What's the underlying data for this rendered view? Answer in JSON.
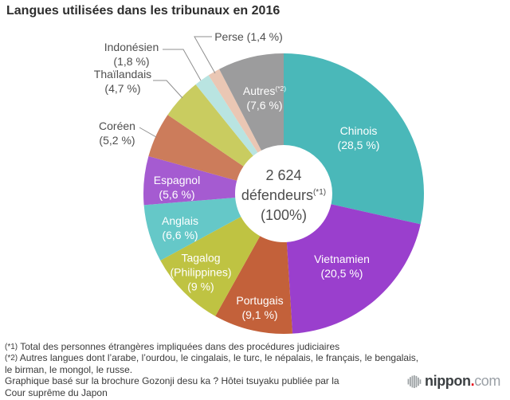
{
  "title": "Langues utilisées dans les tribunaux en 2016",
  "chart_data": {
    "type": "pie",
    "subtype": "donut",
    "title": "Langues utilisées dans les tribunaux en 2016",
    "start_angle_deg": 0,
    "direction": "clockwise",
    "center_label": {
      "total": "2 624",
      "unit": "défendeurs",
      "unit_sup": "(*1)",
      "share": "(100%)"
    },
    "slices": [
      {
        "id": "chinois",
        "name": "Chinois",
        "pct_label": "(28,5 %)",
        "value": 28.5,
        "color": "#4ab8b9"
      },
      {
        "id": "vietnamien",
        "name": "Vietnamien",
        "pct_label": "(20,5 %)",
        "value": 20.5,
        "color": "#9a3fcd"
      },
      {
        "id": "portugais",
        "name": "Portugais",
        "pct_label": "(9,1 %)",
        "value": 9.1,
        "color": "#c3613a"
      },
      {
        "id": "tagalog",
        "name": "Tagalog",
        "sub": "(Philippines)",
        "pct_label": "(9 %)",
        "value": 9.0,
        "color": "#bfc342"
      },
      {
        "id": "anglais",
        "name": "Anglais",
        "pct_label": "(6,6 %)",
        "value": 6.6,
        "color": "#65c8c8"
      },
      {
        "id": "espagnol",
        "name": "Espagnol",
        "pct_label": "(5,6 %)",
        "value": 5.6,
        "color": "#a55bd1"
      },
      {
        "id": "coreen",
        "name": "Coréen",
        "pct_label": "(5,2 %)",
        "value": 5.2,
        "color": "#cc7c5b"
      },
      {
        "id": "thailandais",
        "name": "Thaïlandais",
        "pct_label": "(4,7 %)",
        "value": 4.7,
        "color": "#c9cc60"
      },
      {
        "id": "indonesien",
        "name": "Indonésien",
        "pct_label": "(1,8 %)",
        "value": 1.8,
        "color": "#b9e4e1"
      },
      {
        "id": "perse",
        "name": "Perse",
        "pct_label": "(1,4 %)",
        "value": 1.4,
        "color": "#eac7b4"
      },
      {
        "id": "autres",
        "name": "Autres",
        "name_sup": "(*2)",
        "pct_label": "(7,6 %)",
        "value": 7.6,
        "color": "#9c9c9d"
      }
    ]
  },
  "footnotes": [
    {
      "marker": "(*1)",
      "text": " Total des personnes étrangères impliquées dans des procédures judiciaires"
    },
    {
      "marker": "(*2)",
      "text": " Autres langues dont l’arabe, l’ourdou, le cingalais, le turc, le népalais, le français, le bengalais,"
    },
    {
      "marker": "",
      "text": "le birman, le mongol, le russe."
    },
    {
      "marker": "",
      "text": "Graphique basé sur la brochure Gozonji desu ka ? Hôtei tsuyaku publiée par la"
    },
    {
      "marker": "",
      "text": "Cour suprême du Japon"
    }
  ],
  "logo": {
    "brand": "nippon",
    "dot": ".",
    "tld": "com"
  },
  "colors": {
    "leader_line": "#8f8f8f",
    "title_text": "#2e2e2e",
    "inside_label_text": "#ffffff",
    "outside_label_text": "#4f4f4f",
    "logo_dot_red": "#e60012"
  }
}
